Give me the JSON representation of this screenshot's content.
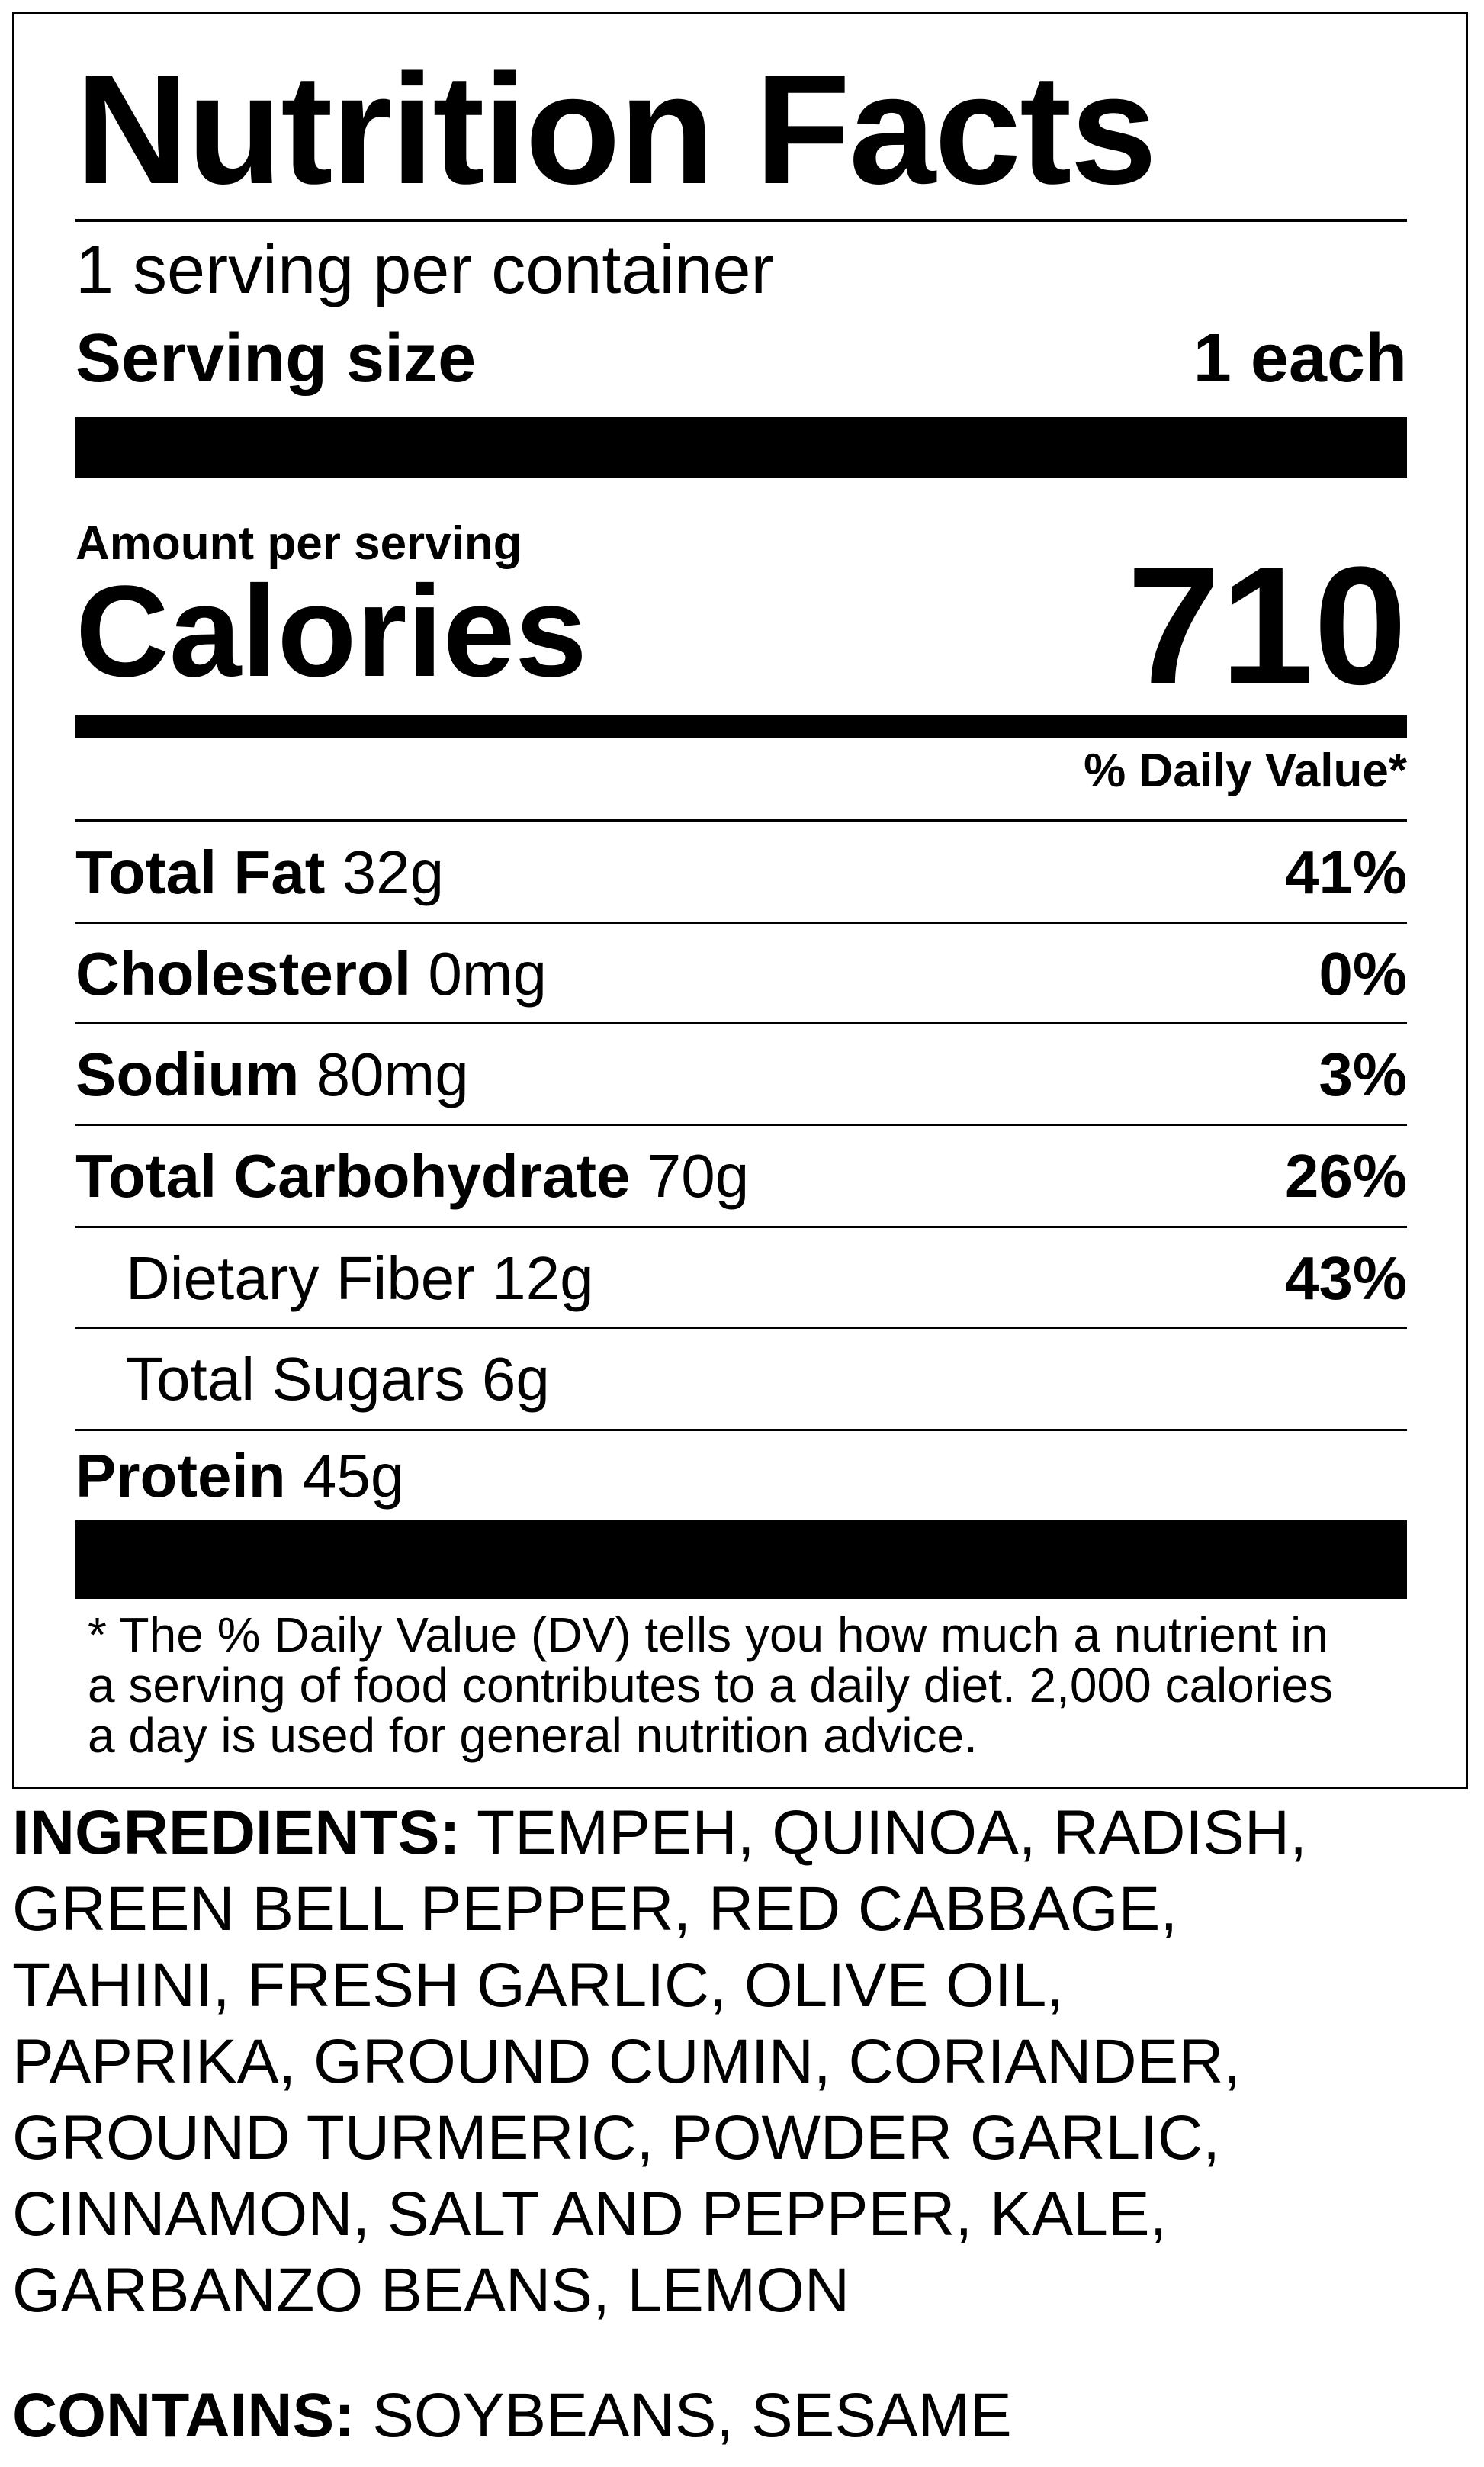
{
  "title": "Nutrition Facts",
  "servings_per_container": "1 serving per container",
  "serving_size": {
    "label": "Serving size",
    "value": "1 each"
  },
  "amount_per_serving": "Amount per serving",
  "calories": {
    "label": "Calories",
    "value": "710"
  },
  "daily_value_header": "% Daily Value*",
  "nutrients": [
    {
      "name": "Total Fat",
      "amount": "32g",
      "dv": "41%"
    },
    {
      "name": "Cholesterol",
      "amount": "0mg",
      "dv": "0%"
    },
    {
      "name": "Sodium",
      "amount": "80mg",
      "dv": "3%"
    },
    {
      "name": "Total Carbohydrate",
      "amount": "70g",
      "dv": "26%"
    },
    {
      "name": "Dietary Fiber 12g",
      "amount": "",
      "dv": "43%"
    },
    {
      "name": "Total Sugars 6g",
      "amount": "",
      "dv": ""
    },
    {
      "name": "Protein",
      "amount": "45g",
      "dv": ""
    }
  ],
  "footnote": [
    "* The % Daily Value (DV) tells you how much a nutrient in",
    "a serving of food contributes to a daily diet. 2,000 calories",
    "a day is used for general nutrition advice."
  ],
  "ingredients": {
    "label": "INGREDIENTS:",
    "lines": [
      " TEMPEH, QUINOA, RADISH,",
      "GREEN BELL PEPPER, RED CABBAGE,",
      "TAHINI, FRESH GARLIC, OLIVE OIL,",
      "PAPRIKA, GROUND CUMIN, CORIANDER,",
      "GROUND TURMERIC, POWDER GARLIC,",
      "CINNAMON, SALT AND PEPPER, KALE,",
      "GARBANZO BEANS, LEMON"
    ]
  },
  "contains": {
    "label": "CONTAINS:",
    "value": " SOYBEANS, SESAME"
  }
}
